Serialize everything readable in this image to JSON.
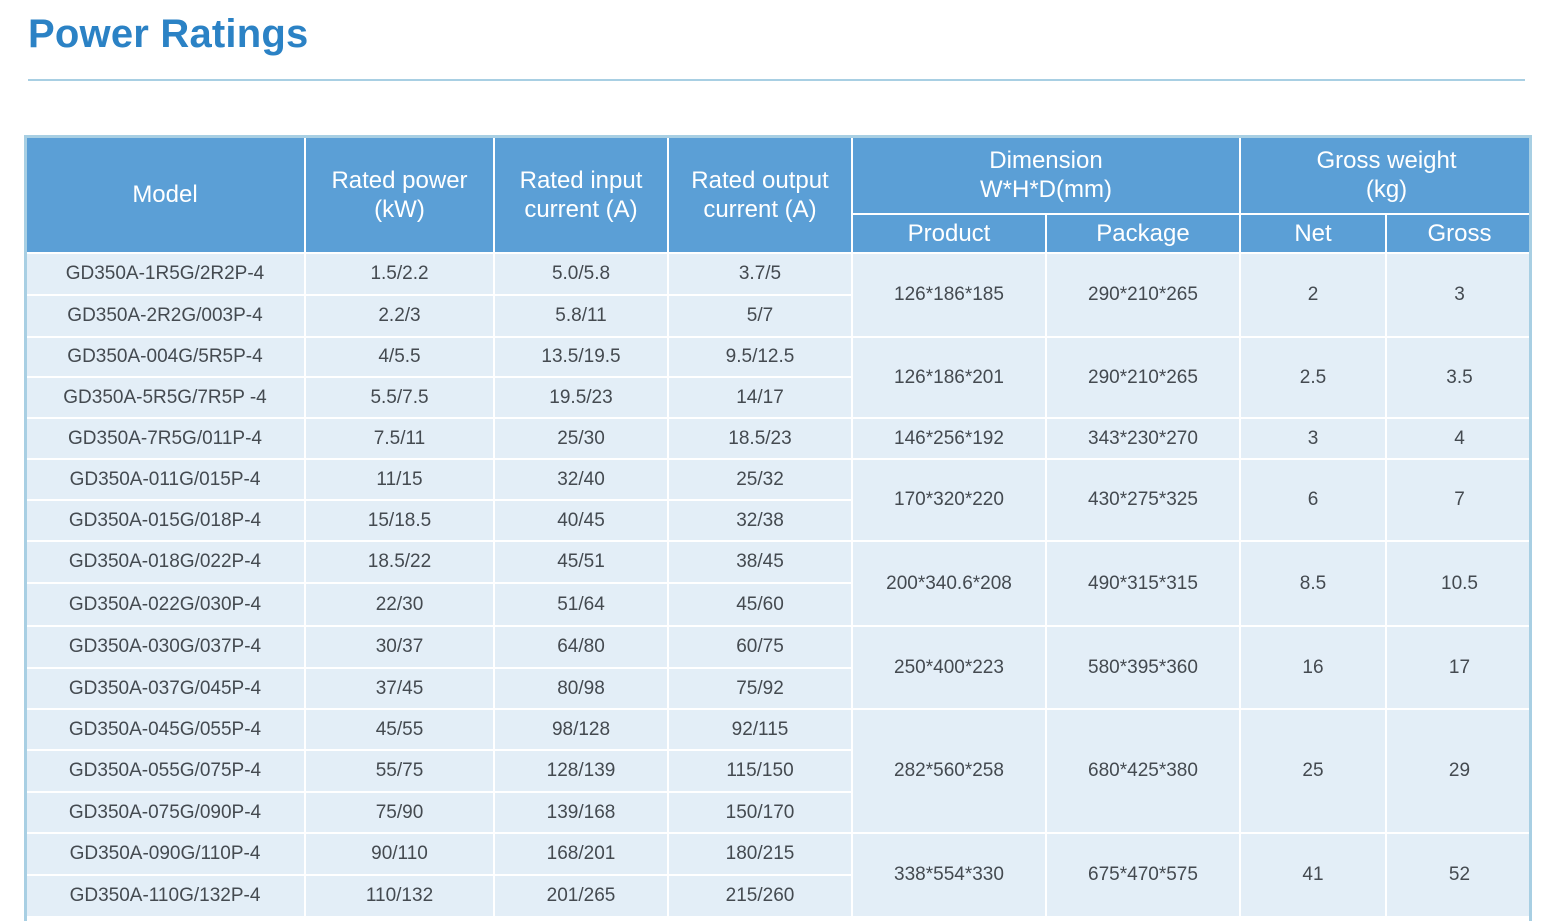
{
  "title": "Power Ratings",
  "header": {
    "model": "Model",
    "rated_power": [
      "Rated power",
      "(kW)"
    ],
    "rated_input": [
      "Rated input",
      "current (A)"
    ],
    "rated_output": [
      "Rated output",
      "current (A)"
    ],
    "dimension": [
      "Dimension",
      "W*H*D(mm)"
    ],
    "weight": [
      "Gross weight",
      "(kg)"
    ],
    "product": "Product",
    "package": "Package",
    "net": "Net",
    "gross": "Gross"
  },
  "rows": [
    {
      "model": "GD350A-1R5G/2R2P-4",
      "power": "1.5/2.2",
      "input": "5.0/5.8",
      "output": "3.7/5"
    },
    {
      "model": "GD350A-2R2G/003P-4",
      "power": "2.2/3",
      "input": "5.8/11",
      "output": "5/7"
    },
    {
      "model": "GD350A-004G/5R5P-4",
      "power": "4/5.5",
      "input": "13.5/19.5",
      "output": "9.5/12.5"
    },
    {
      "model": "GD350A-5R5G/7R5P -4",
      "power": "5.5/7.5",
      "input": "19.5/23",
      "output": "14/17"
    },
    {
      "model": "GD350A-7R5G/011P-4",
      "power": "7.5/11",
      "input": "25/30",
      "output": "18.5/23"
    },
    {
      "model": "GD350A-011G/015P-4",
      "power": "11/15",
      "input": "32/40",
      "output": "25/32"
    },
    {
      "model": "GD350A-015G/018P-4",
      "power": "15/18.5",
      "input": "40/45",
      "output": "32/38"
    },
    {
      "model": "GD350A-018G/022P-4",
      "power": "18.5/22",
      "input": "45/51",
      "output": "38/45"
    },
    {
      "model": "GD350A-022G/030P-4",
      "power": "22/30",
      "input": "51/64",
      "output": "45/60"
    },
    {
      "model": "GD350A-030G/037P-4",
      "power": "30/37",
      "input": "64/80",
      "output": "60/75"
    },
    {
      "model": "GD350A-037G/045P-4",
      "power": "37/45",
      "input": "80/98",
      "output": "75/92"
    },
    {
      "model": "GD350A-045G/055P-4",
      "power": "45/55",
      "input": "98/128",
      "output": "92/115"
    },
    {
      "model": "GD350A-055G/075P-4",
      "power": "55/75",
      "input": "128/139",
      "output": "115/150"
    },
    {
      "model": "GD350A-075G/090P-4",
      "power": "75/90",
      "input": "139/168",
      "output": "150/170"
    },
    {
      "model": "GD350A-090G/110P-4",
      "power": "90/110",
      "input": "168/201",
      "output": "180/215"
    },
    {
      "model": "GD350A-110G/132P-4",
      "power": "110/132",
      "input": "201/265",
      "output": "215/260"
    }
  ],
  "groups": [
    {
      "product": "126*186*185",
      "package": "290*210*265",
      "net": "2",
      "gross": "3"
    },
    {
      "product": "126*186*201",
      "package": "290*210*265",
      "net": "2.5",
      "gross": "3.5"
    },
    {
      "product": "146*256*192",
      "package": "343*230*270",
      "net": "3",
      "gross": "4"
    },
    {
      "product": "170*320*220",
      "package": "430*275*325",
      "net": "6",
      "gross": "7"
    },
    {
      "product": "200*340.6*208",
      "package": "490*315*315",
      "net": "8.5",
      "gross": "10.5"
    },
    {
      "product": "250*400*223",
      "package": "580*395*360",
      "net": "16",
      "gross": "17"
    },
    {
      "product": "282*560*258",
      "package": "680*425*380",
      "net": "25",
      "gross": "29"
    },
    {
      "product": "338*554*330",
      "package": "675*470*575",
      "net": "41",
      "gross": "52"
    }
  ]
}
